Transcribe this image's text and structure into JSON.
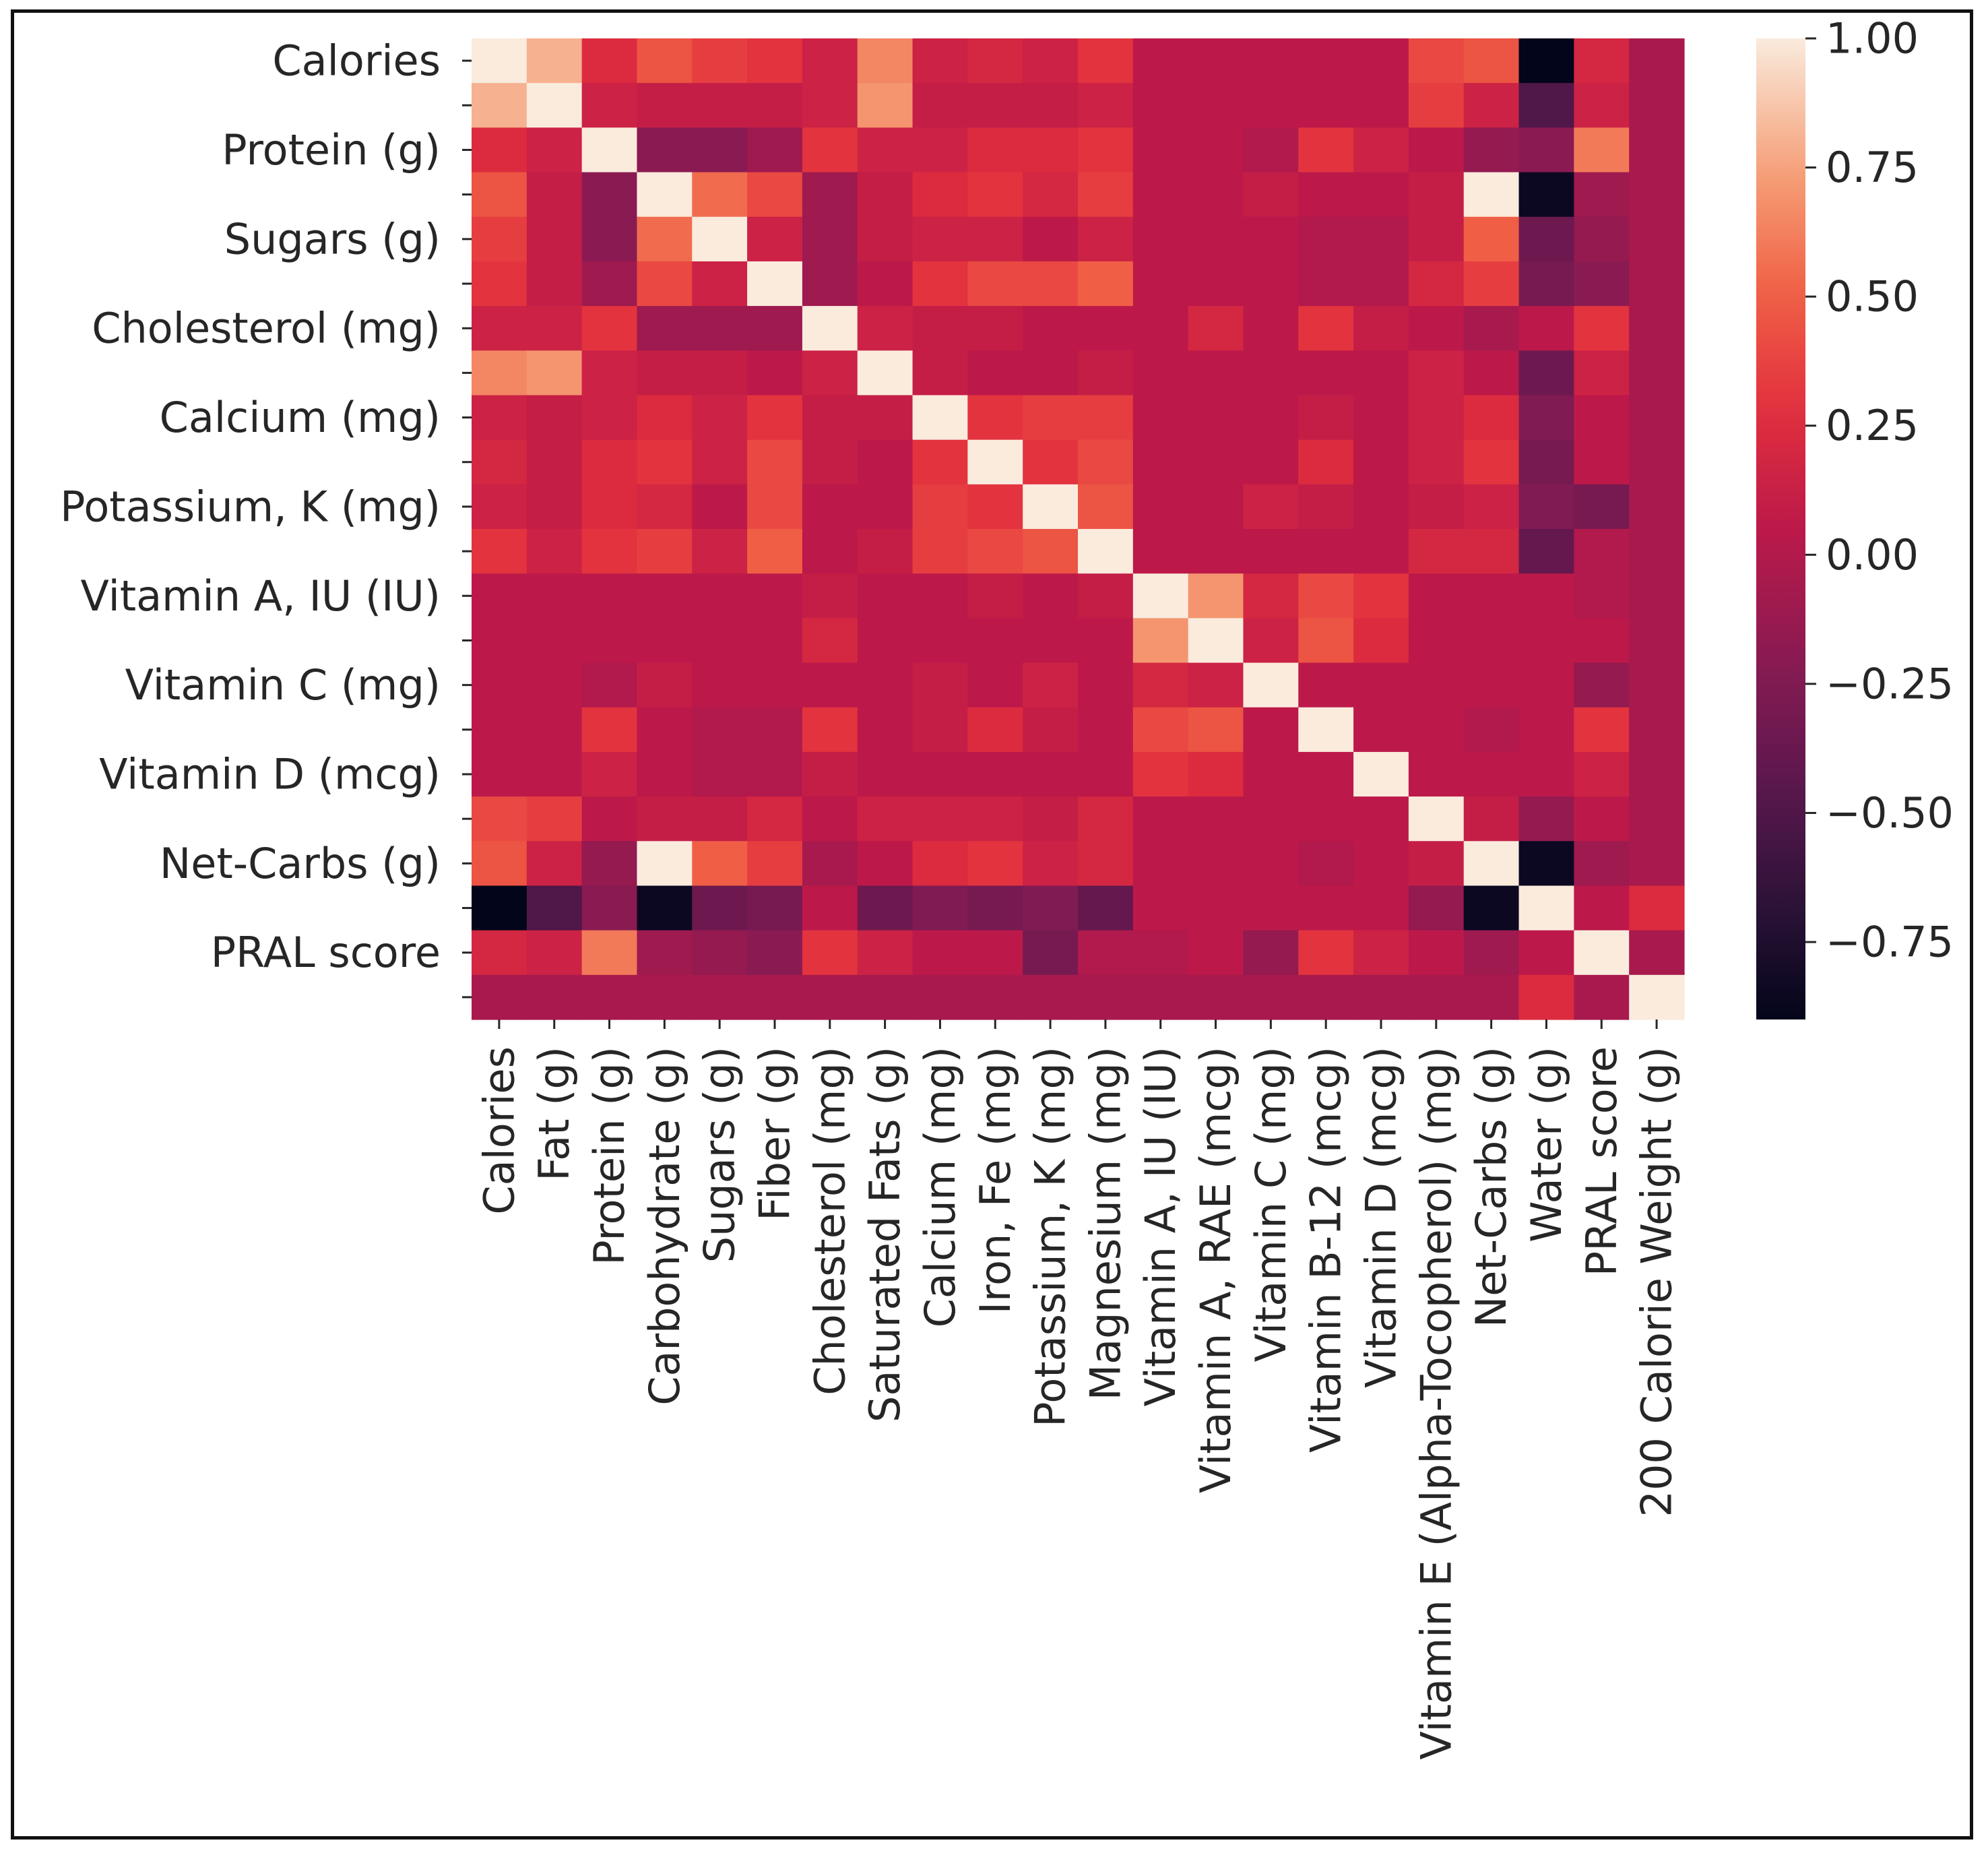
{
  "chart_data": {
    "type": "heatmap",
    "title": "",
    "xlabel": "",
    "ylabel": "",
    "x_labels": [
      "Calories",
      "Fat (g)",
      "Protein (g)",
      "Carbohydrate (g)",
      "Sugars (g)",
      "Fiber (g)",
      "Cholesterol (mg)",
      "Saturated Fats (g)",
      "Calcium (mg)",
      "Iron, Fe (mg)",
      "Potassium, K (mg)",
      "Magnesium (mg)",
      "Vitamin A, IU (IU)",
      "Vitamin A, RAE (mcg)",
      "Vitamin C (mg)",
      "Vitamin B-12 (mcg)",
      "Vitamin D (mcg)",
      "Vitamin E (Alpha-Tocopherol) (mg)",
      "Net-Carbs (g)",
      "Water (g)",
      "PRAL score",
      "200 Calorie Weight (g)"
    ],
    "y_labels": [
      "Calories",
      "",
      "Protein (g)",
      "",
      "Sugars (g)",
      "",
      "Cholesterol (mg)",
      "",
      "Calcium (mg)",
      "",
      "Potassium, K (mg)",
      "",
      "Vitamin A, IU (IU)",
      "",
      "Vitamin C (mg)",
      "",
      "Vitamin D (mcg)",
      "",
      "Net-Carbs (g)",
      "",
      "PRAL score",
      ""
    ],
    "matrix": [
      [
        1.0,
        0.8,
        0.25,
        0.45,
        0.35,
        0.3,
        0.15,
        0.65,
        0.15,
        0.2,
        0.15,
        0.3,
        0.05,
        0.05,
        0.05,
        0.05,
        0.05,
        0.4,
        0.45,
        -0.9,
        0.2,
        -0.05
      ],
      [
        0.8,
        1.0,
        0.15,
        0.1,
        0.1,
        0.1,
        0.15,
        0.7,
        0.1,
        0.1,
        0.1,
        0.15,
        0.05,
        0.05,
        0.05,
        0.05,
        0.05,
        0.35,
        0.15,
        -0.5,
        0.15,
        -0.05
      ],
      [
        0.25,
        0.15,
        1.0,
        -0.2,
        -0.2,
        -0.1,
        0.3,
        0.15,
        0.15,
        0.25,
        0.25,
        0.3,
        0.05,
        0.05,
        0.0,
        0.3,
        0.15,
        0.05,
        -0.15,
        -0.2,
        0.6,
        -0.05
      ],
      [
        0.45,
        0.1,
        -0.2,
        1.0,
        0.55,
        0.4,
        -0.1,
        0.1,
        0.25,
        0.3,
        0.2,
        0.35,
        0.05,
        0.05,
        0.1,
        0.05,
        0.05,
        0.1,
        1.0,
        -0.85,
        -0.1,
        -0.05
      ],
      [
        0.35,
        0.1,
        -0.2,
        0.55,
        1.0,
        0.15,
        -0.1,
        0.1,
        0.15,
        0.15,
        0.05,
        0.15,
        0.05,
        0.05,
        0.05,
        0.0,
        0.0,
        0.1,
        0.5,
        -0.35,
        -0.15,
        -0.05
      ],
      [
        0.3,
        0.1,
        -0.1,
        0.4,
        0.15,
        1.0,
        -0.1,
        0.05,
        0.3,
        0.4,
        0.4,
        0.5,
        0.05,
        0.05,
        0.05,
        0.0,
        0.0,
        0.2,
        0.35,
        -0.3,
        -0.2,
        -0.05
      ],
      [
        0.15,
        0.15,
        0.3,
        -0.1,
        -0.1,
        -0.1,
        1.0,
        0.15,
        0.1,
        0.1,
        0.05,
        0.05,
        0.05,
        0.2,
        0.05,
        0.3,
        0.1,
        0.05,
        -0.05,
        0.05,
        0.3,
        -0.05
      ],
      [
        0.65,
        0.7,
        0.15,
        0.1,
        0.1,
        0.05,
        0.15,
        1.0,
        0.1,
        0.05,
        0.05,
        0.1,
        0.05,
        0.05,
        0.05,
        0.05,
        0.05,
        0.15,
        0.05,
        -0.35,
        0.15,
        -0.05
      ],
      [
        0.15,
        0.1,
        0.15,
        0.25,
        0.15,
        0.3,
        0.1,
        0.1,
        1.0,
        0.3,
        0.35,
        0.35,
        0.05,
        0.05,
        0.05,
        0.1,
        0.05,
        0.15,
        0.25,
        -0.25,
        0.05,
        -0.05
      ],
      [
        0.2,
        0.1,
        0.25,
        0.3,
        0.15,
        0.4,
        0.1,
        0.05,
        0.3,
        1.0,
        0.3,
        0.4,
        0.05,
        0.05,
        0.05,
        0.25,
        0.05,
        0.15,
        0.3,
        -0.3,
        0.05,
        -0.05
      ],
      [
        0.15,
        0.1,
        0.25,
        0.2,
        0.05,
        0.4,
        0.05,
        0.05,
        0.35,
        0.3,
        1.0,
        0.45,
        0.05,
        0.05,
        0.15,
        0.1,
        0.05,
        0.1,
        0.15,
        -0.25,
        -0.3,
        -0.05
      ],
      [
        0.3,
        0.15,
        0.3,
        0.35,
        0.15,
        0.5,
        0.05,
        0.1,
        0.35,
        0.4,
        0.45,
        1.0,
        0.05,
        0.05,
        0.05,
        0.05,
        0.05,
        0.2,
        0.2,
        -0.4,
        0.0,
        -0.05
      ],
      [
        0.05,
        0.05,
        0.05,
        0.05,
        0.05,
        0.05,
        0.1,
        0.05,
        0.05,
        0.1,
        0.05,
        0.1,
        1.0,
        0.7,
        0.2,
        0.4,
        0.3,
        0.05,
        0.05,
        0.05,
        0.0,
        -0.05
      ],
      [
        0.05,
        0.05,
        0.05,
        0.05,
        0.05,
        0.05,
        0.2,
        0.05,
        0.05,
        0.05,
        0.05,
        0.05,
        0.7,
        1.0,
        0.15,
        0.45,
        0.25,
        0.05,
        0.05,
        0.05,
        0.05,
        -0.05
      ],
      [
        0.05,
        0.05,
        0.0,
        0.1,
        0.05,
        0.05,
        0.05,
        0.05,
        0.1,
        0.05,
        0.15,
        0.05,
        0.2,
        0.15,
        1.0,
        0.05,
        0.05,
        0.05,
        0.05,
        0.05,
        -0.15,
        -0.05
      ],
      [
        0.05,
        0.05,
        0.3,
        0.05,
        0.0,
        0.0,
        0.3,
        0.05,
        0.1,
        0.25,
        0.1,
        0.05,
        0.4,
        0.45,
        0.05,
        1.0,
        0.05,
        0.05,
        0.0,
        0.05,
        0.3,
        -0.05
      ],
      [
        0.05,
        0.05,
        0.15,
        0.05,
        0.0,
        0.0,
        0.1,
        0.05,
        0.05,
        0.05,
        0.05,
        0.05,
        0.3,
        0.25,
        0.05,
        0.05,
        1.0,
        0.05,
        0.05,
        0.05,
        0.15,
        -0.05
      ],
      [
        0.4,
        0.35,
        0.05,
        0.1,
        0.1,
        0.2,
        0.05,
        0.15,
        0.15,
        0.15,
        0.1,
        0.2,
        0.05,
        0.05,
        0.05,
        0.05,
        0.05,
        1.0,
        0.1,
        -0.15,
        0.05,
        -0.05
      ],
      [
        0.45,
        0.15,
        -0.15,
        1.0,
        0.5,
        0.35,
        -0.05,
        0.05,
        0.25,
        0.3,
        0.15,
        0.2,
        0.05,
        0.05,
        0.05,
        0.0,
        0.05,
        0.1,
        1.0,
        -0.85,
        -0.1,
        -0.05
      ],
      [
        -0.9,
        -0.5,
        -0.2,
        -0.85,
        -0.35,
        -0.3,
        0.05,
        -0.35,
        -0.25,
        -0.3,
        -0.25,
        -0.4,
        0.05,
        0.05,
        0.05,
        0.05,
        0.05,
        -0.15,
        -0.85,
        1.0,
        0.05,
        0.25
      ],
      [
        0.2,
        0.15,
        0.6,
        -0.1,
        -0.15,
        -0.2,
        0.3,
        0.15,
        0.05,
        0.05,
        -0.3,
        0.0,
        0.0,
        0.05,
        -0.15,
        0.3,
        0.15,
        0.05,
        -0.1,
        0.05,
        1.0,
        -0.05
      ],
      [
        -0.05,
        -0.05,
        -0.05,
        -0.05,
        -0.05,
        -0.05,
        -0.05,
        -0.05,
        -0.05,
        -0.05,
        -0.05,
        -0.05,
        -0.05,
        -0.05,
        -0.05,
        -0.05,
        -0.05,
        -0.05,
        -0.05,
        0.25,
        -0.05,
        1.0
      ]
    ],
    "vmin": -0.9,
    "vmax": 1.0,
    "colormap": "rocket",
    "colorbar": {
      "ticks": [
        1.0,
        0.75,
        0.5,
        0.25,
        0.0,
        -0.25,
        -0.5,
        -0.75
      ],
      "tick_labels": [
        "1.00",
        "0.75",
        "0.50",
        "0.25",
        "0.00",
        "−0.25",
        "−0.50",
        "−0.75"
      ]
    }
  }
}
